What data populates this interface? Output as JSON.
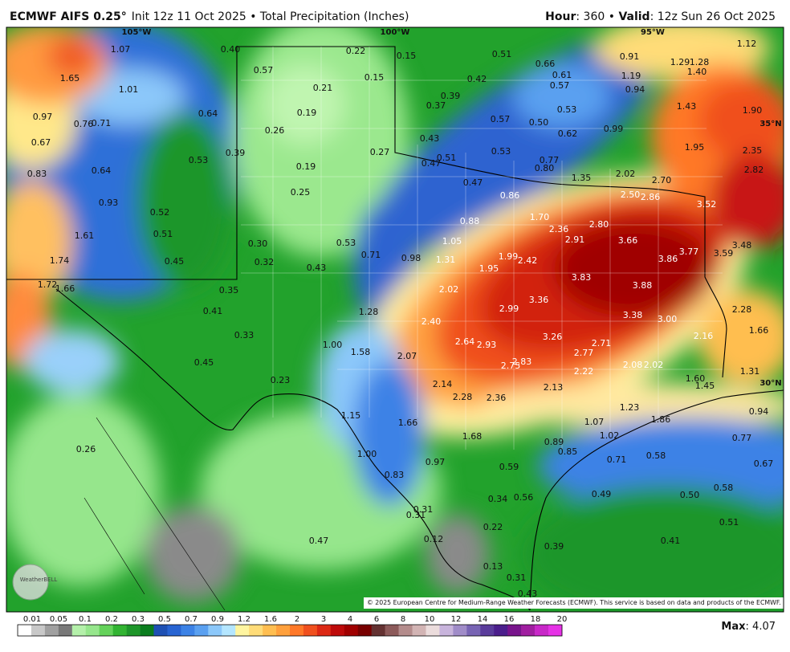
{
  "header": {
    "title": "ECMWF AIFS 0.25°",
    "subtitle": "Init 12z 11 Oct 2025 • Total Precipitation (Inches)",
    "hour_label": "Hour",
    "hour_text": ": 360 • ",
    "valid_label": "Valid",
    "valid_text": ": 12z Sun 26 Oct 2025"
  },
  "map": {
    "geo_labels": [
      "105°W",
      "100°W",
      "95°W",
      "35°N",
      "30°N"
    ],
    "labels": [
      "0.40",
      "0.22",
      "0.15",
      "0.51",
      "0.66",
      "0.91",
      "1.29",
      "1.28",
      "1.12",
      "1.07",
      "1.65",
      "1.01",
      "0.57",
      "0.15",
      "0.42",
      "0.61",
      "1.19",
      "1.40",
      "0.21",
      "0.39",
      "0.57",
      "0.94",
      "0.97",
      "0.76",
      "0.71",
      "0.64",
      "0.19",
      "0.37",
      "0.53",
      "1.43",
      "1.90",
      "0.67",
      "0.26",
      "0.57",
      "0.50",
      "0.99",
      "0.62",
      "0.43",
      "1.95",
      "2.35",
      "0.39",
      "0.53",
      "0.27",
      "0.51",
      "0.53",
      "0.77",
      "0.47",
      "0.80",
      "0.83",
      "0.64",
      "0.19",
      "1.35",
      "2.02",
      "2.70",
      "2.82",
      "0.47",
      "0.25",
      "0.86",
      "2.50",
      "2.86",
      "3.52",
      "0.93",
      "0.52",
      "1.70",
      "0.88",
      "2.80",
      "2.36",
      "1.61",
      "0.51",
      "0.30",
      "0.53",
      "1.05",
      "2.91",
      "3.66",
      "3.77",
      "3.48",
      "3.59",
      "1.74",
      "0.45",
      "0.32",
      "0.71",
      "0.98",
      "1.31",
      "1.99",
      "2.42",
      "3.86",
      "0.43",
      "1.95",
      "3.83",
      "1.72",
      "1.66",
      "0.35",
      "2.02",
      "3.88",
      "3.36",
      "2.99",
      "0.41",
      "1.28",
      "3.38",
      "3.00",
      "2.28",
      "2.40",
      "1.66",
      "0.33",
      "3.26",
      "2.16",
      "1.00",
      "1.58",
      "2.64",
      "2.93",
      "2.71",
      "2.77",
      "2.07",
      "0.45",
      "2.75",
      "2.83",
      "2.08",
      "2.02",
      "2.22",
      "1.31",
      "0.23",
      "1.60",
      "2.14",
      "2.13",
      "1.45",
      "2.28",
      "2.36",
      "1.23",
      "0.94",
      "1.15",
      "1.66",
      "1.07",
      "1.86",
      "1.68",
      "1.02",
      "0.77",
      "0.26",
      "0.89",
      "0.85",
      "1.00",
      "0.71",
      "0.58",
      "0.97",
      "0.67",
      "0.59",
      "0.83",
      "0.58",
      "0.49",
      "0.50",
      "0.34",
      "0.56",
      "0.31",
      "0.31",
      "0.51",
      "0.22",
      "0.47",
      "0.12",
      "0.41",
      "0.39",
      "0.13",
      "0.31",
      "0.43"
    ],
    "logo": "WeatherBELL",
    "credit": "© 2025 European Centre for Medium-Range Weather Forecasts (ECMWF). This service is based on data and products of the ECMWF."
  },
  "colorbar": {
    "labels": [
      "0.01",
      "0.05",
      "0.1",
      "0.2",
      "0.3",
      "0.5",
      "0.7",
      "0.9",
      "1.2",
      "1.6",
      "2",
      "3",
      "4",
      "6",
      "8",
      "10",
      "12",
      "14",
      "16",
      "18",
      "20"
    ]
  },
  "footer": {
    "max_label": "Max",
    "max_text": ": 4.07"
  }
}
